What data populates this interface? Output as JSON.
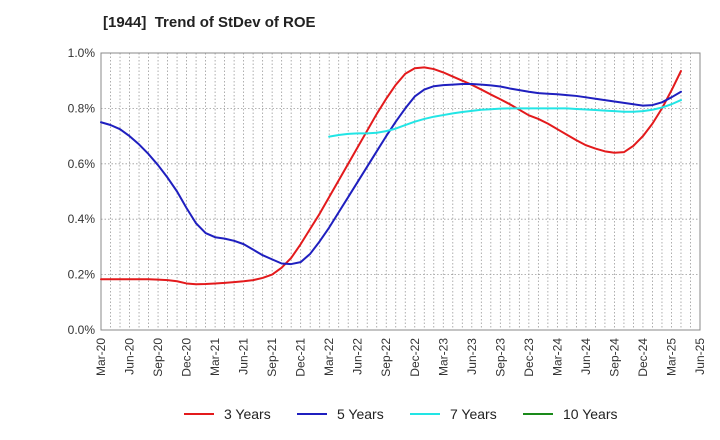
{
  "chart_data": {
    "type": "line",
    "title": "[1944]  Trend of StDev of ROE",
    "xlabel": "",
    "ylabel": "",
    "ylim": [
      0,
      1.0
    ],
    "y_ticks": [
      "0.0%",
      "0.2%",
      "0.4%",
      "0.6%",
      "0.8%",
      "1.0%"
    ],
    "x_ticks": [
      "Mar-20",
      "Jun-20",
      "Sep-20",
      "Dec-20",
      "Mar-21",
      "Jun-21",
      "Sep-21",
      "Dec-21",
      "Mar-22",
      "Jun-22",
      "Sep-22",
      "Dec-22",
      "Mar-23",
      "Jun-23",
      "Sep-23",
      "Dec-23",
      "Mar-24",
      "Jun-24",
      "Sep-24",
      "Dec-24",
      "Mar-25",
      "Jun-25"
    ],
    "grid": true,
    "legend_position": "bottom",
    "series": [
      {
        "name": "3 Years",
        "color": "#e31a1c",
        "points": [
          [
            "Mar-20",
            0.183
          ],
          [
            "Apr-20",
            0.183
          ],
          [
            "May-20",
            0.183
          ],
          [
            "Jun-20",
            0.183
          ],
          [
            "Jul-20",
            0.183
          ],
          [
            "Aug-20",
            0.183
          ],
          [
            "Sep-20",
            0.182
          ],
          [
            "Oct-20",
            0.18
          ],
          [
            "Nov-20",
            0.176
          ],
          [
            "Dec-20",
            0.168
          ],
          [
            "Jan-21",
            0.165
          ],
          [
            "Feb-21",
            0.166
          ],
          [
            "Mar-21",
            0.168
          ],
          [
            "Apr-21",
            0.17
          ],
          [
            "May-21",
            0.173
          ],
          [
            "Jun-21",
            0.176
          ],
          [
            "Jul-21",
            0.18
          ],
          [
            "Aug-21",
            0.188
          ],
          [
            "Sep-21",
            0.2
          ],
          [
            "Oct-21",
            0.225
          ],
          [
            "Nov-21",
            0.26
          ],
          [
            "Dec-21",
            0.31
          ],
          [
            "Jan-22",
            0.365
          ],
          [
            "Feb-22",
            0.42
          ],
          [
            "Mar-22",
            0.48
          ],
          [
            "Apr-22",
            0.54
          ],
          [
            "May-22",
            0.6
          ],
          [
            "Jun-22",
            0.66
          ],
          [
            "Jul-22",
            0.72
          ],
          [
            "Aug-22",
            0.78
          ],
          [
            "Sep-22",
            0.835
          ],
          [
            "Oct-22",
            0.885
          ],
          [
            "Nov-22",
            0.925
          ],
          [
            "Dec-22",
            0.945
          ],
          [
            "Jan-23",
            0.948
          ],
          [
            "Feb-23",
            0.942
          ],
          [
            "Mar-23",
            0.93
          ],
          [
            "Apr-23",
            0.915
          ],
          [
            "May-23",
            0.9
          ],
          [
            "Jun-23",
            0.885
          ],
          [
            "Jul-23",
            0.868
          ],
          [
            "Aug-23",
            0.85
          ],
          [
            "Sep-23",
            0.833
          ],
          [
            "Oct-23",
            0.815
          ],
          [
            "Nov-23",
            0.795
          ],
          [
            "Dec-23",
            0.775
          ],
          [
            "Jan-24",
            0.762
          ],
          [
            "Feb-24",
            0.745
          ],
          [
            "Mar-24",
            0.725
          ],
          [
            "Apr-24",
            0.705
          ],
          [
            "May-24",
            0.685
          ],
          [
            "Jun-24",
            0.667
          ],
          [
            "Jul-24",
            0.655
          ],
          [
            "Aug-24",
            0.645
          ],
          [
            "Sep-24",
            0.64
          ],
          [
            "Oct-24",
            0.642
          ],
          [
            "Nov-24",
            0.665
          ],
          [
            "Dec-24",
            0.7
          ],
          [
            "Jan-25",
            0.745
          ],
          [
            "Feb-25",
            0.8
          ],
          [
            "Mar-25",
            0.865
          ],
          [
            "Apr-25",
            0.935
          ]
        ]
      },
      {
        "name": "5 Years",
        "color": "#1f1fbf",
        "points": [
          [
            "Mar-20",
            0.75
          ],
          [
            "Apr-20",
            0.74
          ],
          [
            "May-20",
            0.725
          ],
          [
            "Jun-20",
            0.7
          ],
          [
            "Jul-20",
            0.67
          ],
          [
            "Aug-20",
            0.635
          ],
          [
            "Sep-20",
            0.595
          ],
          [
            "Oct-20",
            0.55
          ],
          [
            "Nov-20",
            0.5
          ],
          [
            "Dec-20",
            0.44
          ],
          [
            "Jan-21",
            0.385
          ],
          [
            "Feb-21",
            0.35
          ],
          [
            "Mar-21",
            0.335
          ],
          [
            "Apr-21",
            0.33
          ],
          [
            "May-21",
            0.322
          ],
          [
            "Jun-21",
            0.31
          ],
          [
            "Jul-21",
            0.29
          ],
          [
            "Aug-21",
            0.27
          ],
          [
            "Sep-21",
            0.255
          ],
          [
            "Oct-21",
            0.24
          ],
          [
            "Nov-21",
            0.238
          ],
          [
            "Dec-21",
            0.245
          ],
          [
            "Jan-22",
            0.275
          ],
          [
            "Feb-22",
            0.32
          ],
          [
            "Mar-22",
            0.37
          ],
          [
            "Apr-22",
            0.425
          ],
          [
            "May-22",
            0.48
          ],
          [
            "Jun-22",
            0.535
          ],
          [
            "Jul-22",
            0.59
          ],
          [
            "Aug-22",
            0.645
          ],
          [
            "Sep-22",
            0.7
          ],
          [
            "Oct-22",
            0.752
          ],
          [
            "Nov-22",
            0.8
          ],
          [
            "Dec-22",
            0.843
          ],
          [
            "Jan-23",
            0.868
          ],
          [
            "Feb-23",
            0.88
          ],
          [
            "Mar-23",
            0.884
          ],
          [
            "Apr-23",
            0.886
          ],
          [
            "May-23",
            0.888
          ],
          [
            "Jun-23",
            0.888
          ],
          [
            "Jul-23",
            0.886
          ],
          [
            "Aug-23",
            0.883
          ],
          [
            "Sep-23",
            0.879
          ],
          [
            "Oct-23",
            0.872
          ],
          [
            "Nov-23",
            0.866
          ],
          [
            "Dec-23",
            0.86
          ],
          [
            "Jan-24",
            0.855
          ],
          [
            "Feb-24",
            0.853
          ],
          [
            "Mar-24",
            0.851
          ],
          [
            "Apr-24",
            0.848
          ],
          [
            "May-24",
            0.845
          ],
          [
            "Jun-24",
            0.84
          ],
          [
            "Jul-24",
            0.835
          ],
          [
            "Aug-24",
            0.83
          ],
          [
            "Sep-24",
            0.825
          ],
          [
            "Oct-24",
            0.82
          ],
          [
            "Nov-24",
            0.815
          ],
          [
            "Dec-24",
            0.81
          ],
          [
            "Jan-25",
            0.812
          ],
          [
            "Feb-25",
            0.822
          ],
          [
            "Mar-25",
            0.84
          ],
          [
            "Apr-25",
            0.86
          ]
        ]
      },
      {
        "name": "7 Years",
        "color": "#22e5e5",
        "points": [
          [
            "Mar-22",
            0.698
          ],
          [
            "Apr-22",
            0.704
          ],
          [
            "May-22",
            0.708
          ],
          [
            "Jun-22",
            0.71
          ],
          [
            "Jul-22",
            0.71
          ],
          [
            "Aug-22",
            0.712
          ],
          [
            "Sep-22",
            0.718
          ],
          [
            "Oct-22",
            0.727
          ],
          [
            "Nov-22",
            0.74
          ],
          [
            "Dec-22",
            0.752
          ],
          [
            "Jan-23",
            0.762
          ],
          [
            "Feb-23",
            0.77
          ],
          [
            "Mar-23",
            0.776
          ],
          [
            "Apr-23",
            0.782
          ],
          [
            "May-23",
            0.787
          ],
          [
            "Jun-23",
            0.791
          ],
          [
            "Jul-23",
            0.795
          ],
          [
            "Aug-23",
            0.797
          ],
          [
            "Sep-23",
            0.799
          ],
          [
            "Oct-23",
            0.8
          ],
          [
            "Nov-23",
            0.8
          ],
          [
            "Dec-23",
            0.8
          ],
          [
            "Jan-24",
            0.8
          ],
          [
            "Feb-24",
            0.8
          ],
          [
            "Mar-24",
            0.8
          ],
          [
            "Apr-24",
            0.8
          ],
          [
            "May-24",
            0.798
          ],
          [
            "Jun-24",
            0.796
          ],
          [
            "Jul-24",
            0.794
          ],
          [
            "Aug-24",
            0.792
          ],
          [
            "Sep-24",
            0.79
          ],
          [
            "Oct-24",
            0.788
          ],
          [
            "Nov-24",
            0.788
          ],
          [
            "Dec-24",
            0.79
          ],
          [
            "Jan-25",
            0.795
          ],
          [
            "Feb-25",
            0.803
          ],
          [
            "Mar-25",
            0.815
          ],
          [
            "Apr-25",
            0.83
          ]
        ]
      },
      {
        "name": "10 Years",
        "color": "#1a8a1a",
        "points": []
      }
    ]
  }
}
